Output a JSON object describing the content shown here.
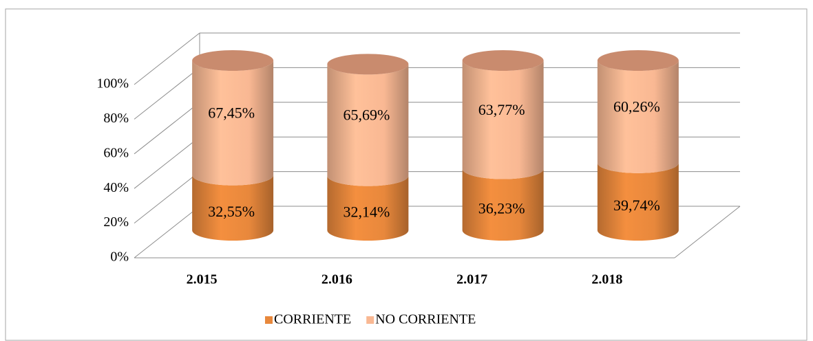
{
  "chart_data": {
    "type": "bar3d_stacked",
    "categories": [
      "2.015",
      "2.016",
      "2.017",
      "2.018"
    ],
    "series": [
      {
        "name": "CORRIENTE",
        "color": "#e8883c",
        "values": [
          32.55,
          32.14,
          36.23,
          39.74
        ],
        "value_labels": [
          "32,55%",
          "32,14%",
          "36,23%",
          "39,74%"
        ]
      },
      {
        "name": "NO CORRIENTE",
        "color": "#f9b893",
        "values": [
          67.45,
          65.69,
          63.77,
          60.26
        ],
        "value_labels": [
          "67,45%",
          "65,69%",
          "63,77%",
          "60,26%"
        ]
      }
    ],
    "ylim": [
      0,
      100
    ],
    "yticks": [
      {
        "value": 0,
        "label": "0%"
      },
      {
        "value": 20,
        "label": "20%"
      },
      {
        "value": 40,
        "label": "40%"
      },
      {
        "value": 60,
        "label": "60%"
      },
      {
        "value": 80,
        "label": "80%"
      },
      {
        "value": 100,
        "label": "100%"
      }
    ],
    "grid": true,
    "legend": "bottom"
  }
}
